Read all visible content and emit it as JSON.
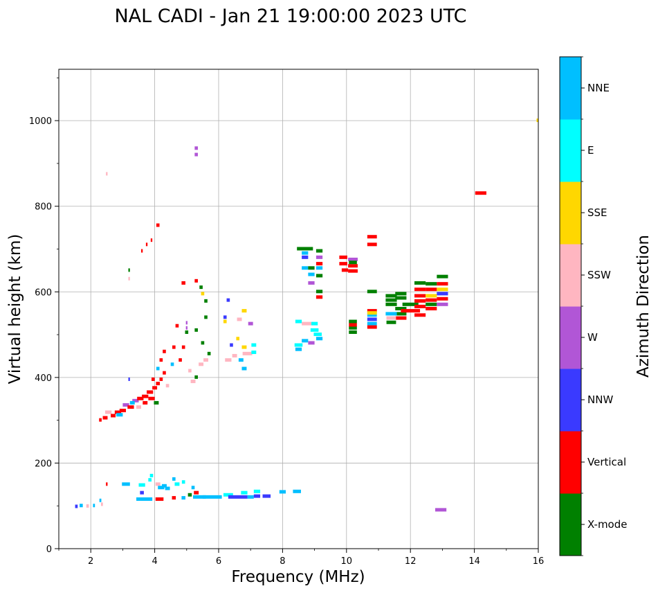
{
  "chart_data": {
    "type": "scatter",
    "title": "NAL CADI - Jan 21 19:00:00 2023 UTC",
    "xlabel": "Frequency (MHz)",
    "ylabel": "Virtual height (km)",
    "xlim": [
      1,
      16
    ],
    "ylim": [
      0,
      1120
    ],
    "xticks": [
      "2",
      "4",
      "6",
      "8",
      "10",
      "12",
      "14",
      "16"
    ],
    "yticks": [
      "0",
      "200",
      "400",
      "600",
      "800",
      "1000"
    ],
    "grid": true,
    "colorbar": {
      "title": "Azimuth Direction",
      "categories": [
        {
          "name": "X-mode",
          "color": "#008000"
        },
        {
          "name": "Vertical",
          "color": "#ff0000"
        },
        {
          "name": "NNW",
          "color": "#3a3aff"
        },
        {
          "name": "W",
          "color": "#b156d6"
        },
        {
          "name": "SSW",
          "color": "#ffb6c1"
        },
        {
          "name": "SSE",
          "color": "#ffd700"
        },
        {
          "name": "E",
          "color": "#00ffff"
        },
        {
          "name": "NNE",
          "color": "#00bfff"
        }
      ]
    },
    "points": [
      {
        "f": 1.55,
        "h": 98,
        "w": 0.08,
        "d": "NNW"
      },
      {
        "f": 1.7,
        "h": 100,
        "w": 0.1,
        "d": "NNE"
      },
      {
        "f": 1.9,
        "h": 99,
        "w": 0.08,
        "d": "SSW"
      },
      {
        "f": 2.1,
        "h": 100,
        "w": 0.06,
        "d": "NNE"
      },
      {
        "f": 2.3,
        "h": 112,
        "w": 0.06,
        "d": "NNE"
      },
      {
        "f": 2.35,
        "h": 103,
        "w": 0.06,
        "d": "SSW"
      },
      {
        "f": 2.5,
        "h": 150,
        "w": 0.05,
        "d": "Vertical"
      },
      {
        "f": 3.1,
        "h": 150,
        "w": 0.25,
        "d": "NNE"
      },
      {
        "f": 3.6,
        "h": 148,
        "w": 0.2,
        "d": "E"
      },
      {
        "f": 3.9,
        "h": 170,
        "w": 0.1,
        "d": "E"
      },
      {
        "f": 3.85,
        "h": 160,
        "w": 0.1,
        "d": "E"
      },
      {
        "f": 4.1,
        "h": 150,
        "w": 0.15,
        "d": "SSW"
      },
      {
        "f": 4.2,
        "h": 142,
        "w": 0.2,
        "d": "NNE"
      },
      {
        "f": 4.3,
        "h": 146,
        "w": 0.15,
        "d": "NNE"
      },
      {
        "f": 4.6,
        "h": 162,
        "w": 0.1,
        "d": "NNE"
      },
      {
        "f": 4.7,
        "h": 150,
        "w": 0.15,
        "d": "E"
      },
      {
        "f": 4.9,
        "h": 155,
        "w": 0.1,
        "d": "E"
      },
      {
        "f": 5.2,
        "h": 142,
        "w": 0.1,
        "d": "NNE"
      },
      {
        "f": 3.5,
        "h": 115,
        "w": 0.15,
        "d": "NNE"
      },
      {
        "f": 3.75,
        "h": 115,
        "w": 0.35,
        "d": "NNE"
      },
      {
        "f": 3.6,
        "h": 130,
        "w": 0.12,
        "d": "NNW"
      },
      {
        "f": 4.15,
        "h": 115,
        "w": 0.25,
        "d": "Vertical"
      },
      {
        "f": 4.4,
        "h": 140,
        "w": 0.15,
        "d": "NNE"
      },
      {
        "f": 4.6,
        "h": 118,
        "w": 0.12,
        "d": "Vertical"
      },
      {
        "f": 4.9,
        "h": 118,
        "w": 0.12,
        "d": "NNE"
      },
      {
        "f": 5.1,
        "h": 125,
        "w": 0.12,
        "d": "X-mode"
      },
      {
        "f": 5.3,
        "h": 130,
        "w": 0.15,
        "d": "Vertical"
      },
      {
        "f": 5.4,
        "h": 120,
        "w": 0.4,
        "d": "NNE"
      },
      {
        "f": 5.8,
        "h": 120,
        "w": 0.6,
        "d": "NNE"
      },
      {
        "f": 6.3,
        "h": 125,
        "w": 0.3,
        "d": "E"
      },
      {
        "f": 6.6,
        "h": 120,
        "w": 0.6,
        "d": "NNW"
      },
      {
        "f": 6.8,
        "h": 130,
        "w": 0.2,
        "d": "E"
      },
      {
        "f": 7.0,
        "h": 120,
        "w": 0.2,
        "d": "NNE"
      },
      {
        "f": 7.2,
        "h": 122,
        "w": 0.2,
        "d": "NNW"
      },
      {
        "f": 7.5,
        "h": 122,
        "w": 0.25,
        "d": "NNW"
      },
      {
        "f": 7.2,
        "h": 133,
        "w": 0.2,
        "d": "E"
      },
      {
        "f": 8.0,
        "h": 132,
        "w": 0.2,
        "d": "NNE"
      },
      {
        "f": 8.45,
        "h": 133,
        "w": 0.25,
        "d": "NNE"
      },
      {
        "f": 2.3,
        "h": 300,
        "w": 0.08,
        "d": "Vertical"
      },
      {
        "f": 2.45,
        "h": 305,
        "w": 0.15,
        "d": "Vertical"
      },
      {
        "f": 2.55,
        "h": 318,
        "w": 0.2,
        "d": "SSW"
      },
      {
        "f": 2.7,
        "h": 310,
        "w": 0.15,
        "d": "Vertical"
      },
      {
        "f": 2.85,
        "h": 318,
        "w": 0.2,
        "d": "Vertical"
      },
      {
        "f": 3.0,
        "h": 322,
        "w": 0.2,
        "d": "Vertical"
      },
      {
        "f": 3.1,
        "h": 335,
        "w": 0.2,
        "d": "W"
      },
      {
        "f": 3.25,
        "h": 330,
        "w": 0.2,
        "d": "Vertical"
      },
      {
        "f": 3.4,
        "h": 345,
        "w": 0.2,
        "d": "W"
      },
      {
        "f": 3.55,
        "h": 350,
        "w": 0.2,
        "d": "Vertical"
      },
      {
        "f": 3.7,
        "h": 355,
        "w": 0.2,
        "d": "Vertical"
      },
      {
        "f": 3.85,
        "h": 365,
        "w": 0.2,
        "d": "Vertical"
      },
      {
        "f": 4.0,
        "h": 375,
        "w": 0.15,
        "d": "Vertical"
      },
      {
        "f": 4.1,
        "h": 385,
        "w": 0.12,
        "d": "Vertical"
      },
      {
        "f": 2.9,
        "h": 312,
        "w": 0.2,
        "d": "NNE"
      },
      {
        "f": 3.3,
        "h": 340,
        "w": 0.15,
        "d": "NNE"
      },
      {
        "f": 3.5,
        "h": 330,
        "w": 0.15,
        "d": "SSW"
      },
      {
        "f": 3.7,
        "h": 340,
        "w": 0.15,
        "d": "Vertical"
      },
      {
        "f": 3.9,
        "h": 350,
        "w": 0.2,
        "d": "Vertical"
      },
      {
        "f": 4.05,
        "h": 340,
        "w": 0.15,
        "d": "X-mode"
      },
      {
        "f": 4.2,
        "h": 395,
        "w": 0.1,
        "d": "Vertical"
      },
      {
        "f": 4.3,
        "h": 410,
        "w": 0.1,
        "d": "Vertical"
      },
      {
        "f": 4.2,
        "h": 440,
        "w": 0.1,
        "d": "Vertical"
      },
      {
        "f": 4.3,
        "h": 460,
        "w": 0.1,
        "d": "Vertical"
      },
      {
        "f": 3.95,
        "h": 395,
        "w": 0.1,
        "d": "Vertical"
      },
      {
        "f": 4.1,
        "h": 420,
        "w": 0.1,
        "d": "NNE"
      },
      {
        "f": 4.4,
        "h": 380,
        "w": 0.1,
        "d": "SSW"
      },
      {
        "f": 4.6,
        "h": 470,
        "w": 0.1,
        "d": "Vertical"
      },
      {
        "f": 4.7,
        "h": 520,
        "w": 0.1,
        "d": "Vertical"
      },
      {
        "f": 4.55,
        "h": 430,
        "w": 0.1,
        "d": "NNE"
      },
      {
        "f": 4.8,
        "h": 440,
        "w": 0.1,
        "d": "Vertical"
      },
      {
        "f": 4.9,
        "h": 470,
        "w": 0.1,
        "d": "Vertical"
      },
      {
        "f": 5.0,
        "h": 505,
        "w": 0.1,
        "d": "X-mode"
      },
      {
        "f": 5.1,
        "h": 415,
        "w": 0.1,
        "d": "SSW"
      },
      {
        "f": 5.2,
        "h": 390,
        "w": 0.15,
        "d": "SSW"
      },
      {
        "f": 5.3,
        "h": 400,
        "w": 0.1,
        "d": "X-mode"
      },
      {
        "f": 5.45,
        "h": 430,
        "w": 0.15,
        "d": "SSW"
      },
      {
        "f": 5.6,
        "h": 440,
        "w": 0.15,
        "d": "SSW"
      },
      {
        "f": 5.7,
        "h": 455,
        "w": 0.1,
        "d": "X-mode"
      },
      {
        "f": 5.5,
        "h": 480,
        "w": 0.1,
        "d": "X-mode"
      },
      {
        "f": 5.6,
        "h": 540,
        "w": 0.1,
        "d": "X-mode"
      },
      {
        "f": 5.45,
        "h": 610,
        "w": 0.1,
        "d": "X-mode"
      },
      {
        "f": 5.3,
        "h": 625,
        "w": 0.1,
        "d": "Vertical"
      },
      {
        "f": 4.9,
        "h": 620,
        "w": 0.12,
        "d": "Vertical"
      },
      {
        "f": 5.6,
        "h": 578,
        "w": 0.1,
        "d": "X-mode"
      },
      {
        "f": 5.3,
        "h": 510,
        "w": 0.1,
        "d": "X-mode"
      },
      {
        "f": 5.5,
        "h": 595,
        "w": 0.1,
        "d": "SSE"
      },
      {
        "f": 3.2,
        "h": 650,
        "w": 0.05,
        "d": "X-mode"
      },
      {
        "f": 3.2,
        "h": 630,
        "w": 0.05,
        "d": "SSW"
      },
      {
        "f": 3.2,
        "h": 395,
        "w": 0.05,
        "d": "NNW"
      },
      {
        "f": 3.6,
        "h": 695,
        "w": 0.05,
        "d": "Vertical"
      },
      {
        "f": 3.75,
        "h": 710,
        "w": 0.05,
        "d": "Vertical"
      },
      {
        "f": 3.9,
        "h": 720,
        "w": 0.05,
        "d": "Vertical"
      },
      {
        "f": 4.1,
        "h": 755,
        "w": 0.1,
        "d": "Vertical"
      },
      {
        "f": 2.5,
        "h": 875,
        "w": 0.05,
        "d": "SSW"
      },
      {
        "f": 5.3,
        "h": 935,
        "w": 0.1,
        "d": "W"
      },
      {
        "f": 5.3,
        "h": 920,
        "w": 0.1,
        "d": "W"
      },
      {
        "f": 5.0,
        "h": 527,
        "w": 0.05,
        "d": "W"
      },
      {
        "f": 5.0,
        "h": 515,
        "w": 0.05,
        "d": "W"
      },
      {
        "f": 6.2,
        "h": 540,
        "w": 0.1,
        "d": "NNW"
      },
      {
        "f": 6.3,
        "h": 580,
        "w": 0.1,
        "d": "NNW"
      },
      {
        "f": 6.2,
        "h": 530,
        "w": 0.1,
        "d": "SSE"
      },
      {
        "f": 6.4,
        "h": 475,
        "w": 0.1,
        "d": "NNW"
      },
      {
        "f": 6.6,
        "h": 490,
        "w": 0.1,
        "d": "SSE"
      },
      {
        "f": 6.8,
        "h": 470,
        "w": 0.15,
        "d": "SSE"
      },
      {
        "f": 6.8,
        "h": 555,
        "w": 0.15,
        "d": "SSE"
      },
      {
        "f": 7.0,
        "h": 525,
        "w": 0.15,
        "d": "W"
      },
      {
        "f": 6.65,
        "h": 535,
        "w": 0.15,
        "d": "SSW"
      },
      {
        "f": 6.5,
        "h": 450,
        "w": 0.15,
        "d": "SSW"
      },
      {
        "f": 6.7,
        "h": 440,
        "w": 0.15,
        "d": "NNE"
      },
      {
        "f": 6.9,
        "h": 455,
        "w": 0.3,
        "d": "SSW"
      },
      {
        "f": 7.1,
        "h": 475,
        "w": 0.15,
        "d": "E"
      },
      {
        "f": 7.1,
        "h": 458,
        "w": 0.15,
        "d": "E"
      },
      {
        "f": 6.8,
        "h": 420,
        "w": 0.15,
        "d": "NNE"
      },
      {
        "f": 6.3,
        "h": 440,
        "w": 0.2,
        "d": "SSW"
      },
      {
        "f": 8.5,
        "h": 530,
        "w": 0.2,
        "d": "E"
      },
      {
        "f": 8.75,
        "h": 525,
        "w": 0.3,
        "d": "SSW"
      },
      {
        "f": 9.0,
        "h": 525,
        "w": 0.2,
        "d": "E"
      },
      {
        "f": 8.5,
        "h": 475,
        "w": 0.25,
        "d": "E"
      },
      {
        "f": 8.5,
        "h": 465,
        "w": 0.2,
        "d": "NNE"
      },
      {
        "f": 8.7,
        "h": 485,
        "w": 0.2,
        "d": "NNE"
      },
      {
        "f": 8.9,
        "h": 480,
        "w": 0.2,
        "d": "W"
      },
      {
        "f": 9.1,
        "h": 500,
        "w": 0.25,
        "d": "E"
      },
      {
        "f": 9.0,
        "h": 510,
        "w": 0.25,
        "d": "E"
      },
      {
        "f": 9.15,
        "h": 490,
        "w": 0.2,
        "d": "NNE"
      },
      {
        "f": 8.7,
        "h": 690,
        "w": 0.2,
        "d": "NNE"
      },
      {
        "f": 8.7,
        "h": 680,
        "w": 0.2,
        "d": "NNW"
      },
      {
        "f": 8.7,
        "h": 700,
        "w": 0.5,
        "d": "X-mode"
      },
      {
        "f": 8.7,
        "h": 655,
        "w": 0.2,
        "d": "NNE"
      },
      {
        "f": 8.9,
        "h": 640,
        "w": 0.2,
        "d": "NNE"
      },
      {
        "f": 8.9,
        "h": 620,
        "w": 0.2,
        "d": "W"
      },
      {
        "f": 9.15,
        "h": 695,
        "w": 0.2,
        "d": "X-mode"
      },
      {
        "f": 9.15,
        "h": 680,
        "w": 0.2,
        "d": "W"
      },
      {
        "f": 9.15,
        "h": 665,
        "w": 0.2,
        "d": "Vertical"
      },
      {
        "f": 9.15,
        "h": 655,
        "w": 0.2,
        "d": "NNE"
      },
      {
        "f": 9.15,
        "h": 637,
        "w": 0.2,
        "d": "X-mode"
      },
      {
        "f": 9.15,
        "h": 600,
        "w": 0.2,
        "d": "X-mode"
      },
      {
        "f": 9.15,
        "h": 587,
        "w": 0.2,
        "d": "Vertical"
      },
      {
        "f": 8.9,
        "h": 655,
        "w": 0.2,
        "d": "X-mode"
      },
      {
        "f": 9.9,
        "h": 680,
        "w": 0.25,
        "d": "Vertical"
      },
      {
        "f": 9.9,
        "h": 665,
        "w": 0.25,
        "d": "Vertical"
      },
      {
        "f": 10.2,
        "h": 675,
        "w": 0.3,
        "d": "W"
      },
      {
        "f": 10.2,
        "h": 660,
        "w": 0.3,
        "d": "Vertical"
      },
      {
        "f": 10.2,
        "h": 648,
        "w": 0.3,
        "d": "Vertical"
      },
      {
        "f": 9.95,
        "h": 650,
        "w": 0.2,
        "d": "Vertical"
      },
      {
        "f": 10.2,
        "h": 668,
        "w": 0.25,
        "d": "X-mode"
      },
      {
        "f": 10.8,
        "h": 728,
        "w": 0.3,
        "d": "Vertical"
      },
      {
        "f": 10.8,
        "h": 710,
        "w": 0.3,
        "d": "Vertical"
      },
      {
        "f": 10.2,
        "h": 530,
        "w": 0.25,
        "d": "X-mode"
      },
      {
        "f": 10.2,
        "h": 515,
        "w": 0.25,
        "d": "X-mode"
      },
      {
        "f": 10.2,
        "h": 505,
        "w": 0.25,
        "d": "X-mode"
      },
      {
        "f": 10.2,
        "h": 522,
        "w": 0.25,
        "d": "Vertical"
      },
      {
        "f": 10.8,
        "h": 600,
        "w": 0.3,
        "d": "X-mode"
      },
      {
        "f": 10.8,
        "h": 555,
        "w": 0.3,
        "d": "Vertical"
      },
      {
        "f": 10.8,
        "h": 545,
        "w": 0.3,
        "d": "NNE"
      },
      {
        "f": 10.8,
        "h": 535,
        "w": 0.3,
        "d": "NNW"
      },
      {
        "f": 10.8,
        "h": 525,
        "w": 0.3,
        "d": "NNE"
      },
      {
        "f": 10.8,
        "h": 517,
        "w": 0.3,
        "d": "Vertical"
      },
      {
        "f": 10.8,
        "h": 550,
        "w": 0.3,
        "d": "SSE"
      },
      {
        "f": 11.4,
        "h": 590,
        "w": 0.35,
        "d": "X-mode"
      },
      {
        "f": 11.4,
        "h": 580,
        "w": 0.35,
        "d": "X-mode"
      },
      {
        "f": 11.4,
        "h": 570,
        "w": 0.35,
        "d": "X-mode"
      },
      {
        "f": 11.7,
        "h": 595,
        "w": 0.35,
        "d": "X-mode"
      },
      {
        "f": 11.7,
        "h": 585,
        "w": 0.35,
        "d": "X-mode"
      },
      {
        "f": 11.7,
        "h": 560,
        "w": 0.35,
        "d": "X-mode"
      },
      {
        "f": 11.7,
        "h": 548,
        "w": 0.35,
        "d": "X-mode"
      },
      {
        "f": 11.7,
        "h": 538,
        "w": 0.35,
        "d": "Vertical"
      },
      {
        "f": 11.4,
        "h": 548,
        "w": 0.35,
        "d": "NNE"
      },
      {
        "f": 11.4,
        "h": 528,
        "w": 0.3,
        "d": "X-mode"
      },
      {
        "f": 11.4,
        "h": 538,
        "w": 0.3,
        "d": "SSW"
      },
      {
        "f": 12.0,
        "h": 570,
        "w": 0.5,
        "d": "X-mode"
      },
      {
        "f": 12.0,
        "h": 555,
        "w": 0.6,
        "d": "Vertical"
      },
      {
        "f": 12.3,
        "h": 620,
        "w": 0.35,
        "d": "X-mode"
      },
      {
        "f": 12.3,
        "h": 605,
        "w": 0.35,
        "d": "Vertical"
      },
      {
        "f": 12.3,
        "h": 590,
        "w": 0.35,
        "d": "Vertical"
      },
      {
        "f": 12.3,
        "h": 578,
        "w": 0.35,
        "d": "Vertical"
      },
      {
        "f": 12.3,
        "h": 565,
        "w": 0.35,
        "d": "Vertical"
      },
      {
        "f": 12.3,
        "h": 545,
        "w": 0.35,
        "d": "Vertical"
      },
      {
        "f": 12.65,
        "h": 618,
        "w": 0.35,
        "d": "X-mode"
      },
      {
        "f": 12.65,
        "h": 605,
        "w": 0.35,
        "d": "Vertical"
      },
      {
        "f": 12.65,
        "h": 590,
        "w": 0.35,
        "d": "SSE"
      },
      {
        "f": 12.65,
        "h": 580,
        "w": 0.35,
        "d": "Vertical"
      },
      {
        "f": 12.65,
        "h": 570,
        "w": 0.35,
        "d": "X-mode"
      },
      {
        "f": 12.65,
        "h": 560,
        "w": 0.35,
        "d": "Vertical"
      },
      {
        "f": 13.0,
        "h": 635,
        "w": 0.35,
        "d": "X-mode"
      },
      {
        "f": 13.0,
        "h": 618,
        "w": 0.35,
        "d": "Vertical"
      },
      {
        "f": 13.0,
        "h": 605,
        "w": 0.35,
        "d": "SSE"
      },
      {
        "f": 13.0,
        "h": 595,
        "w": 0.35,
        "d": "NNW"
      },
      {
        "f": 13.0,
        "h": 583,
        "w": 0.35,
        "d": "Vertical"
      },
      {
        "f": 13.0,
        "h": 570,
        "w": 0.35,
        "d": "W"
      },
      {
        "f": 12.95,
        "h": 90,
        "w": 0.35,
        "d": "W"
      },
      {
        "f": 14.2,
        "h": 830,
        "w": 0.35,
        "d": "Vertical"
      },
      {
        "f": 15.97,
        "h": 1000,
        "w": 0.05,
        "d": "SSE"
      }
    ]
  }
}
